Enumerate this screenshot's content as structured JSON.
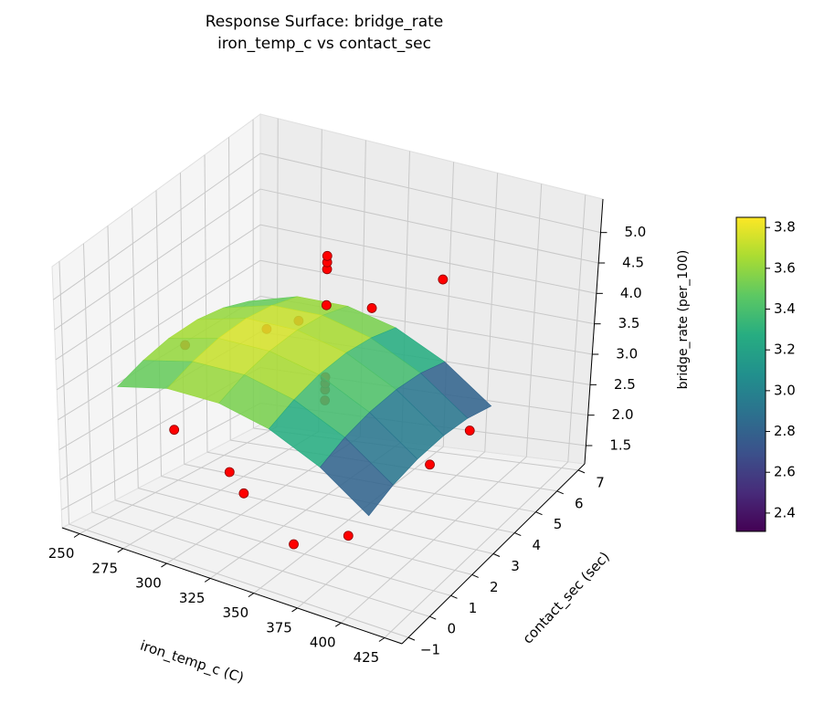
{
  "chart_data": {
    "type": "surface3d",
    "title": "Response Surface: bridge_rate\niron_temp_c vs contact_sec",
    "xlabel": "iron_temp_c (C)",
    "ylabel": "contact_sec (sec)",
    "zlabel": "bridge_rate (per_100)",
    "xlim": [
      240,
      435
    ],
    "xticks": [
      250,
      275,
      300,
      325,
      350,
      375,
      400,
      425
    ],
    "ylim": [
      -1.3,
      7.3
    ],
    "yticks": [
      {
        "value": -1,
        "label": "−1"
      },
      0,
      1,
      2,
      3,
      4,
      5,
      6,
      7
    ],
    "zlim": [
      1.2,
      5.55
    ],
    "zticks": [
      1.5,
      {
        "value": 2,
        "label": "2.0"
      },
      2.5,
      {
        "value": 3,
        "label": "3.0"
      },
      3.5,
      {
        "value": 4,
        "label": "4.0"
      },
      4.5,
      {
        "value": 5,
        "label": "5.0"
      }
    ],
    "grid": true,
    "colormap": "viridis",
    "clim": [
      2.31,
      3.85
    ],
    "cticks": [
      2.4,
      2.6,
      2.8,
      {
        "value": 3,
        "label": "3.0"
      },
      3.2,
      3.4,
      3.6,
      3.8
    ],
    "surface": {
      "x": [
        254,
        282,
        311,
        339,
        368,
        396
      ],
      "y": [
        0.2,
        1.3,
        2.4,
        3.6,
        4.7,
        5.8
      ],
      "z": [
        [
          3.31,
          3.53,
          3.55,
          3.38,
          3.01,
          2.46
        ],
        [
          3.46,
          3.67,
          3.7,
          3.53,
          3.16,
          2.61
        ],
        [
          3.54,
          3.75,
          3.77,
          3.61,
          3.23,
          2.68
        ],
        [
          3.54,
          3.75,
          3.77,
          3.61,
          3.23,
          2.68
        ],
        [
          3.46,
          3.67,
          3.7,
          3.53,
          3.16,
          2.61
        ],
        [
          3.31,
          3.53,
          3.55,
          3.38,
          3.01,
          2.46
        ]
      ]
    },
    "points": {
      "color": "#ff0000",
      "edgecolor": "#8b0000",
      "x": [
        255,
        275,
        275,
        375,
        375,
        396,
        325,
        325,
        335,
        335,
        335,
        335,
        335,
        335,
        335,
        335,
        350,
        300,
        400,
        300
      ],
      "y": [
        3.0,
        1.0,
        5.0,
        1.0,
        5.0,
        3.0,
        0.2,
        5.8,
        3,
        3,
        3,
        3,
        3,
        3,
        3,
        3,
        0.5,
        1.5,
        4.5,
        4.5
      ],
      "z": [
        3.3,
        2.6,
        3.2,
        1.7,
        4.6,
        2.4,
        2.2,
        3.6,
        3.0,
        3.17,
        3.27,
        3.37,
        4.51,
        5.08,
        5.19,
        5.29,
        1.5,
        2.0,
        2.5,
        3.6
      ]
    }
  }
}
